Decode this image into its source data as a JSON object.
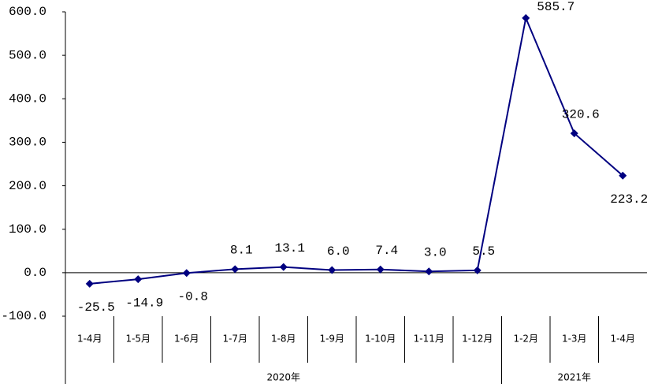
{
  "chart_data": {
    "type": "line",
    "groups": [
      {
        "name": "2020年",
        "categories": [
          "1-4月",
          "1-5月",
          "1-6月",
          "1-7月",
          "1-8月",
          "1-9月",
          "1-10月",
          "1-11月",
          "1-12月"
        ]
      },
      {
        "name": "2021年",
        "categories": [
          "1-2月",
          "1-3月",
          "1-4月"
        ]
      }
    ],
    "series": [
      {
        "color": "#000080",
        "values": [
          -25.5,
          -14.9,
          -0.8,
          8.1,
          13.1,
          6.0,
          7.4,
          3.0,
          5.5,
          585.7,
          320.6,
          223.2
        ],
        "value_labels": [
          "-25.5",
          "-14.9",
          "-0.8",
          "8.1",
          "13.1",
          "6.0",
          "7.4",
          "3.0",
          "5.5",
          "585.7",
          "320.6",
          "223.2"
        ]
      }
    ],
    "ylim": [
      -100,
      600
    ],
    "yticks": [
      {
        "value": -100,
        "label": "-100.0"
      },
      {
        "value": 0,
        "label": "0.0"
      },
      {
        "value": 100,
        "label": "100.0"
      },
      {
        "value": 200,
        "label": "200.0"
      },
      {
        "value": 300,
        "label": "300.0"
      },
      {
        "value": 400,
        "label": "400.0"
      },
      {
        "value": 500,
        "label": "500.0"
      },
      {
        "value": 600,
        "label": "600.0"
      }
    ],
    "grid": false
  }
}
